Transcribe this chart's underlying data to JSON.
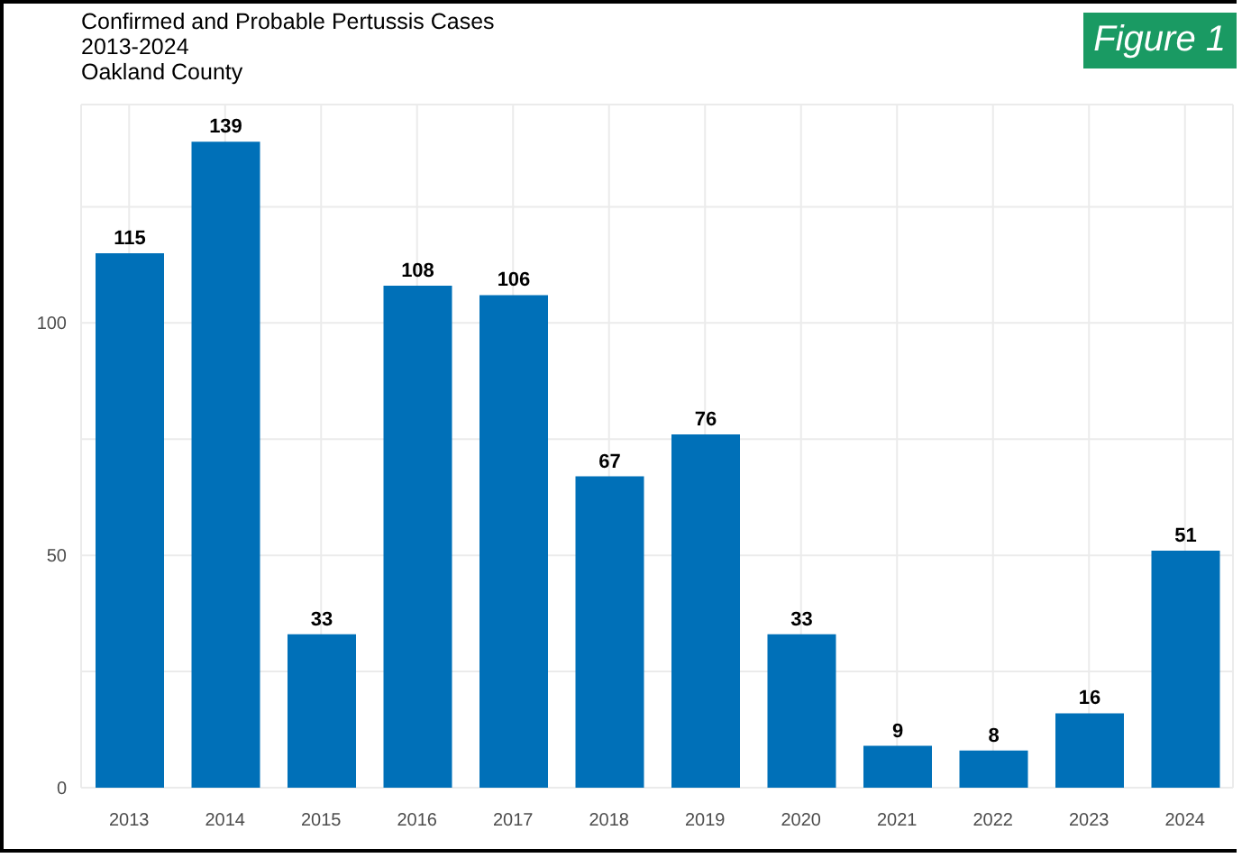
{
  "chart_data": {
    "type": "bar",
    "title": "Confirmed and Probable Pertussis Cases",
    "subtitle": "2013-2024\nOakland County",
    "annotations": [
      "Figure 1"
    ],
    "categories": [
      "2013",
      "2014",
      "2015",
      "2016",
      "2017",
      "2018",
      "2019",
      "2020",
      "2021",
      "2022",
      "2023",
      "2024"
    ],
    "values": [
      115,
      139,
      33,
      108,
      106,
      67,
      76,
      33,
      9,
      8,
      16,
      51
    ],
    "color": "#0070b8",
    "ylim": [
      0,
      147
    ],
    "yticks": [
      0,
      {
        "value": 25,
        "label": null
      },
      50,
      {
        "value": 75,
        "label": null
      },
      100,
      {
        "value": 125,
        "label": null
      }
    ],
    "grid": true,
    "data_labels": true
  }
}
